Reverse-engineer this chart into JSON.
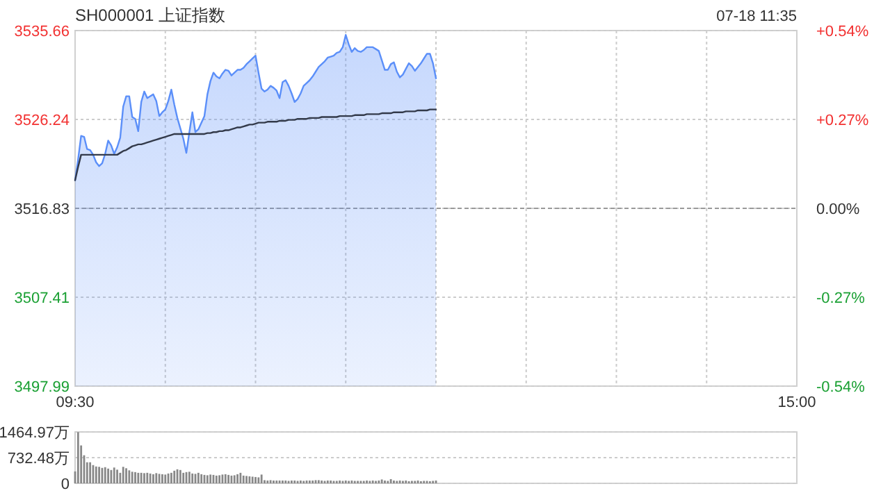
{
  "chart_data": [
    {
      "type": "area",
      "title": "SH000001 上证指数",
      "subtitle": "07-18 11:35",
      "categories": [
        "09:30",
        null,
        null,
        null,
        null,
        null,
        null,
        null,
        null,
        null,
        null,
        null,
        null,
        null,
        null,
        null,
        null,
        null,
        null,
        null,
        null,
        null,
        null,
        null,
        null,
        null,
        null,
        null,
        null,
        null,
        null,
        null,
        null,
        null,
        null,
        null,
        null,
        null,
        null,
        null,
        null,
        null,
        null,
        null,
        null,
        null,
        null,
        null,
        null,
        null,
        null,
        null,
        null,
        null,
        null,
        null,
        null,
        null,
        null,
        null,
        null,
        null,
        null,
        null,
        null,
        null,
        null,
        null,
        null,
        null,
        null,
        null,
        null,
        null,
        null,
        null,
        null,
        null,
        null,
        null,
        null,
        null,
        null,
        null,
        null,
        null,
        null,
        null,
        null,
        null,
        null,
        null,
        null,
        null,
        null,
        null,
        null,
        null,
        null,
        null,
        null,
        null,
        null,
        null,
        null,
        null,
        null,
        null,
        null,
        null,
        null,
        null,
        null,
        null,
        null,
        null,
        null,
        null,
        null,
        null,
        null,
        null,
        null,
        null,
        null,
        null,
        null,
        null,
        null,
        null,
        null,
        null,
        null,
        null,
        null,
        null,
        null,
        null,
        null,
        null,
        null,
        null,
        null,
        null,
        null,
        null,
        null,
        null,
        null,
        null,
        null,
        null,
        null,
        null,
        null,
        null,
        null,
        null,
        null,
        null,
        null,
        null,
        null,
        null,
        null,
        null,
        null,
        null,
        null,
        null,
        null,
        null,
        null,
        null,
        null,
        null,
        null,
        null,
        null,
        null,
        null,
        null,
        null,
        null,
        null,
        null,
        null,
        null,
        null,
        null,
        null,
        null,
        null,
        null,
        null,
        null,
        null,
        null,
        null,
        null,
        null,
        null,
        null,
        null,
        null,
        null,
        null,
        null,
        null,
        null,
        null,
        null,
        null,
        null,
        null,
        null,
        null,
        null,
        null,
        null,
        null,
        null,
        null,
        null,
        null,
        null,
        null,
        null,
        null,
        null,
        null,
        null,
        null,
        null,
        null,
        null,
        null,
        null,
        null,
        null,
        "15:00"
      ],
      "ylim": [
        3497.99,
        3535.66
      ],
      "yticks": [
        3497.99,
        3507.41,
        3516.83,
        3526.24,
        3535.66
      ],
      "y2lim": [
        -0.54,
        0.54
      ],
      "y2ticks": [
        {
          "value": -0.54,
          "label": "-0.54%"
        },
        {
          "value": -0.27,
          "label": "-0.27%"
        },
        {
          "value": 0,
          "label": "0.00%"
        },
        {
          "value": 0.27,
          "label": "+0.27%"
        },
        {
          "value": 0.54,
          "label": "+0.54%"
        }
      ],
      "grid": true,
      "ref_lines": [
        {
          "axis": "y",
          "value": 3516.83
        }
      ],
      "series": [
        {
          "color": "#5b8ff9",
          "values": [
            3519.8,
            3522.0,
            3524.5,
            3524.4,
            3523.1,
            3523.0,
            3522.5,
            3521.7,
            3521.3,
            3521.6,
            3522.6,
            3524.0,
            3523.5,
            3522.6,
            3523.3,
            3524.3,
            3527.6,
            3528.7,
            3528.7,
            3526.5,
            3526.3,
            3525.0,
            3528.1,
            3529.2,
            3528.5,
            3528.7,
            3528.9,
            3528.2,
            3526.6,
            3527.0,
            3527.3,
            3528.2,
            3529.4,
            3527.8,
            3526.4,
            3525.3,
            3524.2,
            3522.7,
            3524.9,
            3527.0,
            3524.9,
            3525.2,
            3525.9,
            3526.6,
            3528.9,
            3530.3,
            3531.2,
            3530.8,
            3530.6,
            3531.1,
            3531.5,
            3531.4,
            3530.9,
            3531.2,
            3531.5,
            3531.5,
            3531.7,
            3532.1,
            3532.4,
            3532.7,
            3533.0,
            3531.2,
            3529.5,
            3529.2,
            3529.4,
            3529.8,
            3529.6,
            3529.3,
            3528.5,
            3530.2,
            3530.4,
            3529.8,
            3529.0,
            3528.1,
            3528.4,
            3529.0,
            3529.8,
            3530.1,
            3530.4,
            3530.8,
            3531.3,
            3531.8,
            3532.1,
            3532.4,
            3532.8,
            3532.9,
            3533.0,
            3533.3,
            3533.4,
            3533.9,
            3535.2,
            3534.2,
            3533.4,
            3533.8,
            3533.5,
            3533.4,
            3533.6,
            3533.9,
            3533.9,
            3533.9,
            3533.7,
            3533.5,
            3532.5,
            3531.5,
            3531.5,
            3532.1,
            3532.3,
            3531.3,
            3530.7,
            3531.0,
            3531.6,
            3532.2,
            3531.9,
            3531.4,
            3531.8,
            3532.2,
            3532.7,
            3533.2,
            3533.2,
            3532.2,
            3530.6,
            null,
            null,
            null,
            null,
            null,
            null,
            null,
            null,
            null,
            null,
            null,
            null,
            null,
            null,
            null,
            null,
            null,
            null,
            null,
            null,
            null,
            null,
            null,
            null,
            null,
            null,
            null,
            null,
            null,
            null,
            null,
            null,
            null,
            null,
            null,
            null,
            null,
            null,
            null,
            null,
            null,
            null,
            null,
            null,
            null,
            null,
            null,
            null,
            null,
            null,
            null,
            null,
            null,
            null,
            null,
            null,
            null,
            null,
            null,
            null,
            null,
            null,
            null,
            null,
            null,
            null,
            null,
            null,
            null,
            null,
            null,
            null,
            null,
            null,
            null,
            null,
            null,
            null,
            null,
            null,
            null,
            null,
            null,
            null,
            null,
            null,
            null,
            null,
            null,
            null,
            null,
            null,
            null,
            null,
            null,
            null,
            null,
            null,
            null,
            null,
            null,
            null,
            null,
            null,
            null,
            null,
            null,
            null,
            null,
            null,
            null,
            null,
            null,
            null,
            null,
            null,
            null,
            null,
            null,
            null
          ]
        },
        {
          "type": "line",
          "color": "#333a4a",
          "values": [
            3519.8,
            3521.2,
            3522.5,
            3522.5,
            3522.5,
            3522.5,
            3522.5,
            3522.5,
            3522.5,
            3522.5,
            3522.5,
            3522.5,
            3522.5,
            3522.5,
            3522.5,
            3522.7,
            3522.9,
            3523.0,
            3523.2,
            3523.4,
            3523.5,
            3523.6,
            3523.6,
            3523.7,
            3523.8,
            3523.9,
            3524.0,
            3524.1,
            3524.2,
            3524.3,
            3524.4,
            3524.5,
            3524.6,
            3524.7,
            3524.7,
            3524.7,
            3524.7,
            3524.7,
            3524.7,
            3524.7,
            3524.7,
            3524.7,
            3524.7,
            3524.7,
            3524.8,
            3524.8,
            3524.9,
            3524.9,
            3525.0,
            3525.0,
            3525.1,
            3525.1,
            3525.2,
            3525.3,
            3525.4,
            3525.4,
            3525.5,
            3525.6,
            3525.7,
            3525.7,
            3525.8,
            3525.9,
            3525.9,
            3525.9,
            3526.0,
            3526.0,
            3526.0,
            3526.0,
            3526.1,
            3526.1,
            3526.1,
            3526.2,
            3526.2,
            3526.2,
            3526.3,
            3526.3,
            3526.3,
            3526.3,
            3526.4,
            3526.4,
            3526.4,
            3526.4,
            3526.5,
            3526.5,
            3526.5,
            3526.5,
            3526.5,
            3526.5,
            3526.6,
            3526.6,
            3526.6,
            3526.6,
            3526.6,
            3526.7,
            3526.7,
            3526.7,
            3526.7,
            3526.8,
            3526.8,
            3526.8,
            3526.8,
            3526.8,
            3526.9,
            3526.9,
            3526.9,
            3526.9,
            3527.0,
            3527.0,
            3527.0,
            3527.0,
            3527.1,
            3527.1,
            3527.1,
            3527.1,
            3527.2,
            3527.2,
            3527.2,
            3527.2,
            3527.3,
            3527.3,
            3527.3,
            null,
            null,
            null,
            null,
            null,
            null,
            null,
            null,
            null,
            null,
            null,
            null,
            null,
            null,
            null,
            null,
            null,
            null,
            null,
            null,
            null,
            null,
            null,
            null,
            null,
            null,
            null,
            null,
            null,
            null,
            null,
            null,
            null,
            null,
            null,
            null,
            null,
            null,
            null,
            null,
            null,
            null,
            null,
            null,
            null,
            null,
            null,
            null,
            null,
            null,
            null,
            null,
            null,
            null,
            null,
            null,
            null,
            null,
            null,
            null,
            null,
            null,
            null,
            null,
            null,
            null,
            null,
            null,
            null,
            null,
            null,
            null,
            null,
            null,
            null,
            null,
            null,
            null,
            null,
            null,
            null,
            null,
            null,
            null,
            null,
            null,
            null,
            null,
            null,
            null,
            null,
            null,
            null,
            null,
            null,
            null,
            null,
            null,
            null,
            null,
            null,
            null,
            null,
            null,
            null,
            null,
            null,
            null,
            null,
            null,
            null,
            null,
            null,
            null,
            null,
            null,
            null,
            null,
            null,
            null
          ]
        }
      ]
    },
    {
      "type": "bar",
      "tick_labels": "y",
      "ylim": [
        0,
        1464.97
      ],
      "yticks": [
        0,
        {
          "value": 732.48,
          "label": "732.48万"
        },
        {
          "value": 1464.97,
          "label": "1464.97万"
        }
      ],
      "grid": "y",
      "categories": [
        null,
        null,
        null,
        null,
        null,
        null,
        null,
        null,
        null,
        null,
        null,
        null,
        null,
        null,
        null,
        null,
        null,
        null,
        null,
        null,
        null,
        null,
        null,
        null,
        null,
        null,
        null,
        null,
        null,
        null,
        null,
        null,
        null,
        null,
        null,
        null,
        null,
        null,
        null,
        null,
        null,
        null,
        null,
        null,
        null,
        null,
        null,
        null,
        null,
        null,
        null,
        null,
        null,
        null,
        null,
        null,
        null,
        null,
        null,
        null,
        null,
        null,
        null,
        null,
        null,
        null,
        null,
        null,
        null,
        null,
        null,
        null,
        null,
        null,
        null,
        null,
        null,
        null,
        null,
        null,
        null,
        null,
        null,
        null,
        null,
        null,
        null,
        null,
        null,
        null,
        null,
        null,
        null,
        null,
        null,
        null,
        null,
        null,
        null,
        null,
        null,
        null,
        null,
        null,
        null,
        null,
        null,
        null,
        null,
        null,
        null,
        null,
        null,
        null,
        null,
        null,
        null,
        null,
        null,
        null,
        null,
        null,
        null,
        null,
        null,
        null,
        null,
        null,
        null,
        null,
        null,
        null,
        null,
        null,
        null,
        null,
        null,
        null,
        null,
        null,
        null,
        null,
        null,
        null,
        null,
        null,
        null,
        null,
        null,
        null,
        null,
        null,
        null,
        null,
        null,
        null,
        null,
        null,
        null,
        null,
        null,
        null,
        null,
        null,
        null,
        null,
        null,
        null,
        null,
        null,
        null,
        null,
        null,
        null,
        null,
        null,
        null,
        null,
        null,
        null,
        null,
        null,
        null,
        null,
        null,
        null,
        null,
        null,
        null,
        null,
        null,
        null,
        null,
        null,
        null,
        null,
        null,
        null,
        null,
        null,
        null,
        null,
        null,
        null,
        null,
        null,
        null,
        null,
        null,
        null,
        null,
        null,
        null,
        null,
        null,
        null,
        null,
        null,
        null,
        null,
        null,
        null,
        null,
        null,
        null,
        null,
        null,
        null,
        null,
        null,
        null,
        null,
        null,
        null,
        null,
        null,
        null,
        null,
        null,
        null,
        null
      ],
      "series": [
        {
          "color": "#888888",
          "values": [
            340,
            1460,
            1080,
            800,
            600,
            600,
            520,
            480,
            470,
            440,
            460,
            420,
            380,
            450,
            390,
            300,
            470,
            430,
            370,
            330,
            320,
            300,
            300,
            290,
            300,
            280,
            260,
            290,
            270,
            260,
            250,
            280,
            300,
            360,
            400,
            380,
            300,
            320,
            330,
            280,
            270,
            300,
            260,
            240,
            230,
            250,
            240,
            220,
            230,
            250,
            260,
            240,
            220,
            230,
            260,
            300,
            220,
            210,
            200,
            190,
            180,
            170,
            250,
            90,
            80,
            90,
            80,
            80,
            80,
            80,
            80,
            70,
            80,
            80,
            70,
            80,
            70,
            80,
            80,
            80,
            90,
            90,
            80,
            70,
            80,
            80,
            70,
            70,
            80,
            70,
            80,
            70,
            80,
            70,
            70,
            70,
            70,
            80,
            70,
            80,
            70,
            80,
            110,
            80,
            70,
            120,
            80,
            70,
            80,
            70,
            80,
            60,
            70,
            70,
            80,
            60,
            70,
            70,
            60,
            70,
            80,
            null,
            null,
            null,
            null,
            null,
            null,
            null,
            null,
            null,
            null,
            null,
            null,
            null,
            null,
            null,
            null,
            null,
            null,
            null,
            null,
            null,
            null,
            null,
            null,
            null,
            null,
            null,
            null,
            null,
            null,
            null,
            null,
            null,
            null,
            null,
            null,
            null,
            null,
            null,
            null,
            null,
            null,
            null,
            null,
            null,
            null,
            null,
            null,
            null,
            null,
            null,
            null,
            null,
            null,
            null,
            null,
            null,
            null,
            null,
            null,
            null,
            null,
            null,
            null,
            null,
            null,
            null,
            null,
            null,
            null,
            null,
            null,
            null,
            null,
            null,
            null,
            null,
            null,
            null,
            null,
            null,
            null,
            null,
            null,
            null,
            null,
            null,
            null,
            null,
            null,
            null,
            null,
            null,
            null,
            null,
            null,
            null,
            null,
            null,
            null,
            null,
            null,
            null,
            null,
            null,
            null,
            null,
            null,
            null,
            null,
            null,
            null,
            null,
            null,
            null,
            null,
            null,
            null,
            null,
            null
          ]
        }
      ]
    }
  ]
}
